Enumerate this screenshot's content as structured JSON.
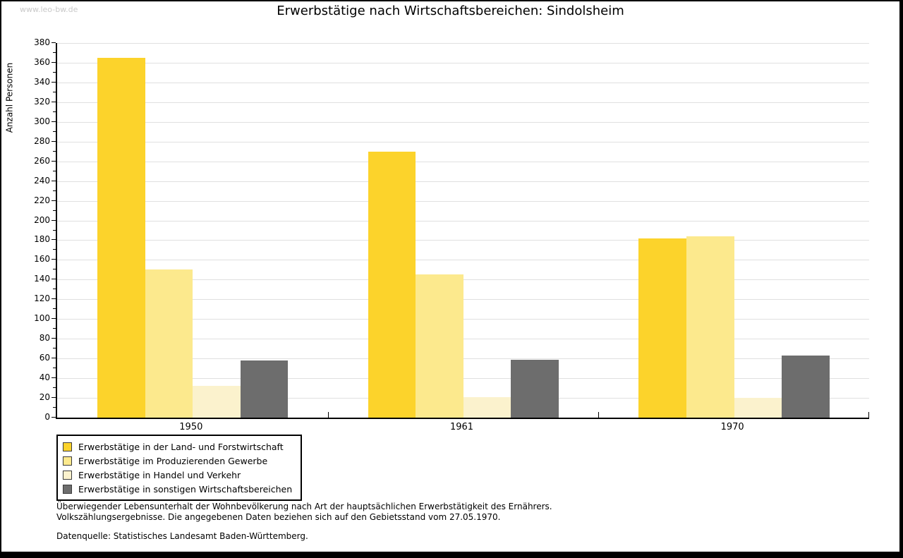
{
  "page": {
    "watermark": "www.leo-bw.de"
  },
  "chart_data": {
    "type": "bar",
    "title": "Erwerbstätige nach Wirtschaftsbereichen: Sindolsheim",
    "xlabel": "",
    "ylabel": "Anzahl Personen",
    "ylim": [
      0,
      380
    ],
    "ytick_step": 20,
    "yticks": [
      0,
      20,
      40,
      60,
      80,
      100,
      120,
      140,
      160,
      180,
      200,
      220,
      240,
      260,
      280,
      300,
      320,
      340,
      360,
      380
    ],
    "grid": true,
    "legend_position": "bottom-left",
    "categories": [
      "1950",
      "1961",
      "1970"
    ],
    "series": [
      {
        "name": "Erwerbstätige in der Land- und Forstwirtschaft",
        "color": "#fcd32b",
        "values": [
          365,
          270,
          182
        ]
      },
      {
        "name": "Erwerbstätige im Produzierenden Gewerbe",
        "color": "#fce98d",
        "values": [
          150,
          145,
          184
        ]
      },
      {
        "name": "Erwerbstätige in Handel und Verkehr",
        "color": "#fbf2cd",
        "values": [
          32,
          21,
          20
        ]
      },
      {
        "name": "Erwerbstätige in sonstigen Wirtschaftsbereichen",
        "color": "#6d6d6d",
        "values": [
          58,
          59,
          63
        ]
      }
    ],
    "axis_color": "#000000",
    "gridline_color": "#e0e0e0"
  },
  "footer": {
    "line1": "Überwiegender Lebensunterhalt der Wohnbevölkerung nach Art der hauptsächlichen Erwerbstätigkeit des Ernährers.",
    "line2": "Volkszählungsergebnisse. Die angegebenen Daten beziehen sich auf den Gebietsstand vom 27.05.1970.",
    "source": "Datenquelle: Statistisches Landesamt Baden-Württemberg."
  }
}
